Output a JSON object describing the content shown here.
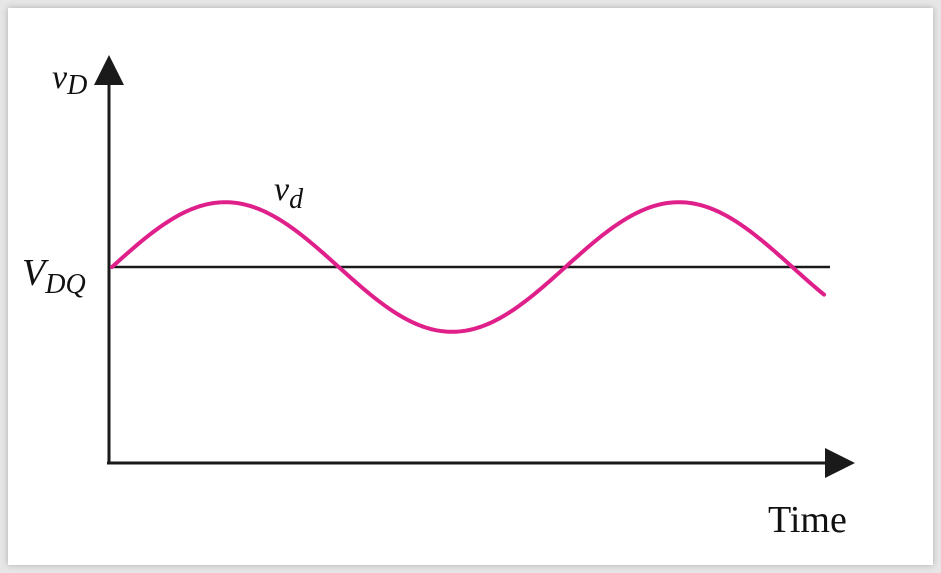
{
  "labels": {
    "y_axis_main": "v",
    "y_axis_sub": "D",
    "signal_main": "v",
    "signal_sub": "d",
    "quiescent_main": "V",
    "quiescent_sub": "DQ",
    "x_axis": "Time"
  },
  "colors": {
    "signal": "#e0208a",
    "axes": "#1a1a1a",
    "dc_level": "#1a1a1a"
  },
  "signal": {
    "shape": "sine",
    "cycles_shown": 1.57,
    "amplitude_relative_to_axis_height": 0.16
  }
}
